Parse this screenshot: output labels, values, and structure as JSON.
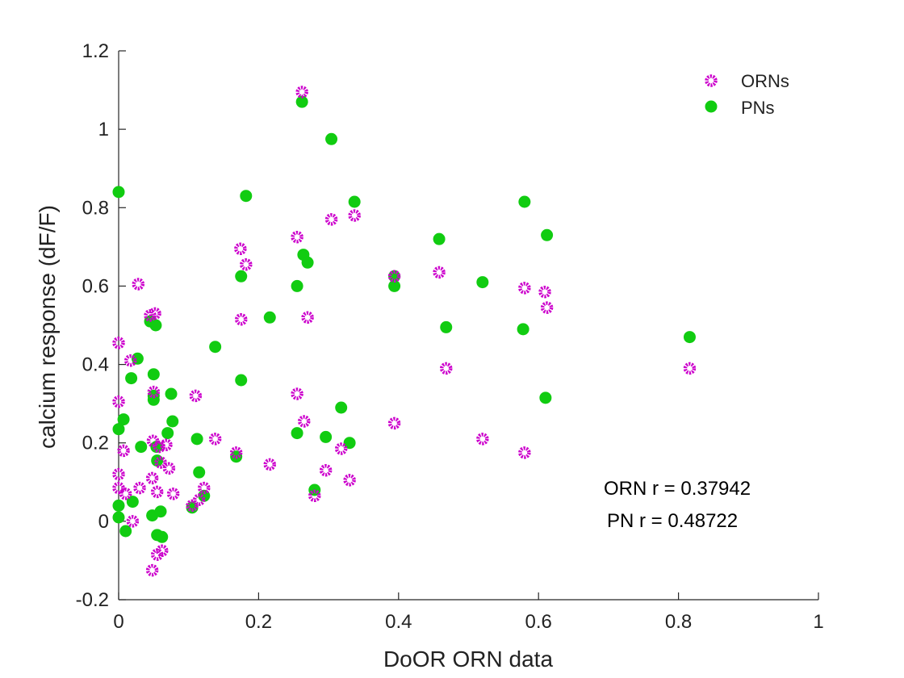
{
  "chart_data": {
    "type": "scatter",
    "xlabel": "DoOR ORN data",
    "ylabel": "calcium response (dF/F)",
    "xlim": [
      0,
      1
    ],
    "ylim": [
      -0.2,
      1.2
    ],
    "xticks": [
      "0",
      "0.2",
      "0.4",
      "0.6",
      "0.8",
      "1"
    ],
    "yticks": [
      "-0.2",
      "0",
      "0.2",
      "0.4",
      "0.6",
      "0.8",
      "1",
      "1.2"
    ],
    "grid": false,
    "legend_position": "top-right",
    "annotations": [
      "ORN r = 0.37942",
      "PN r = 0.48722"
    ],
    "series": [
      {
        "name": "ORNs",
        "marker": "ring",
        "color": "#cc00cc",
        "points": [
          [
            0.0,
            0.455
          ],
          [
            0.0,
            0.305
          ],
          [
            0.0,
            0.12
          ],
          [
            0.0,
            0.085
          ],
          [
            0.007,
            0.18
          ],
          [
            0.01,
            0.07
          ],
          [
            0.017,
            0.41
          ],
          [
            0.02,
            0.0
          ],
          [
            0.028,
            0.605
          ],
          [
            0.03,
            0.085
          ],
          [
            0.045,
            0.525
          ],
          [
            0.048,
            0.11
          ],
          [
            0.049,
            0.205
          ],
          [
            0.05,
            0.33
          ],
          [
            0.052,
            0.53
          ],
          [
            0.048,
            -0.125
          ],
          [
            0.055,
            0.075
          ],
          [
            0.055,
            -0.085
          ],
          [
            0.058,
            0.19
          ],
          [
            0.06,
            0.15
          ],
          [
            0.062,
            -0.075
          ],
          [
            0.068,
            0.195
          ],
          [
            0.072,
            0.135
          ],
          [
            0.078,
            0.07
          ],
          [
            0.105,
            0.04
          ],
          [
            0.11,
            0.32
          ],
          [
            0.115,
            0.055
          ],
          [
            0.122,
            0.085
          ],
          [
            0.138,
            0.21
          ],
          [
            0.168,
            0.175
          ],
          [
            0.174,
            0.695
          ],
          [
            0.175,
            0.515
          ],
          [
            0.182,
            0.655
          ],
          [
            0.216,
            0.145
          ],
          [
            0.255,
            0.725
          ],
          [
            0.255,
            0.325
          ],
          [
            0.262,
            1.095
          ],
          [
            0.265,
            0.255
          ],
          [
            0.27,
            0.52
          ],
          [
            0.28,
            0.065
          ],
          [
            0.296,
            0.13
          ],
          [
            0.304,
            0.77
          ],
          [
            0.318,
            0.185
          ],
          [
            0.33,
            0.105
          ],
          [
            0.337,
            0.78
          ],
          [
            0.394,
            0.625
          ],
          [
            0.394,
            0.25
          ],
          [
            0.458,
            0.635
          ],
          [
            0.468,
            0.39
          ],
          [
            0.52,
            0.21
          ],
          [
            0.58,
            0.595
          ],
          [
            0.58,
            0.175
          ],
          [
            0.609,
            0.585
          ],
          [
            0.612,
            0.545
          ],
          [
            0.816,
            0.39
          ]
        ]
      },
      {
        "name": "PNs",
        "marker": "dot",
        "color": "#11cc11",
        "points": [
          [
            0.0,
            0.84
          ],
          [
            0.0,
            0.235
          ],
          [
            0.0,
            0.04
          ],
          [
            0.0,
            0.01
          ],
          [
            0.007,
            0.26
          ],
          [
            0.01,
            -0.025
          ],
          [
            0.018,
            0.365
          ],
          [
            0.02,
            0.05
          ],
          [
            0.027,
            0.415
          ],
          [
            0.032,
            0.19
          ],
          [
            0.045,
            0.51
          ],
          [
            0.048,
            0.015
          ],
          [
            0.05,
            0.375
          ],
          [
            0.05,
            0.31
          ],
          [
            0.05,
            0.32
          ],
          [
            0.053,
            0.5
          ],
          [
            0.054,
            0.19
          ],
          [
            0.055,
            0.155
          ],
          [
            0.055,
            -0.035
          ],
          [
            0.062,
            -0.04
          ],
          [
            0.06,
            0.025
          ],
          [
            0.07,
            0.225
          ],
          [
            0.075,
            0.325
          ],
          [
            0.077,
            0.255
          ],
          [
            0.105,
            0.035
          ],
          [
            0.112,
            0.21
          ],
          [
            0.115,
            0.125
          ],
          [
            0.122,
            0.065
          ],
          [
            0.138,
            0.445
          ],
          [
            0.168,
            0.165
          ],
          [
            0.175,
            0.625
          ],
          [
            0.175,
            0.36
          ],
          [
            0.182,
            0.83
          ],
          [
            0.216,
            0.52
          ],
          [
            0.255,
            0.6
          ],
          [
            0.255,
            0.225
          ],
          [
            0.262,
            1.07
          ],
          [
            0.264,
            0.68
          ],
          [
            0.27,
            0.66
          ],
          [
            0.28,
            0.08
          ],
          [
            0.296,
            0.215
          ],
          [
            0.304,
            0.975
          ],
          [
            0.318,
            0.29
          ],
          [
            0.33,
            0.2
          ],
          [
            0.337,
            0.815
          ],
          [
            0.394,
            0.625
          ],
          [
            0.394,
            0.6
          ],
          [
            0.458,
            0.72
          ],
          [
            0.468,
            0.495
          ],
          [
            0.52,
            0.61
          ],
          [
            0.58,
            0.815
          ],
          [
            0.578,
            0.49
          ],
          [
            0.61,
            0.315
          ],
          [
            0.612,
            0.73
          ],
          [
            0.816,
            0.47
          ]
        ]
      }
    ]
  }
}
